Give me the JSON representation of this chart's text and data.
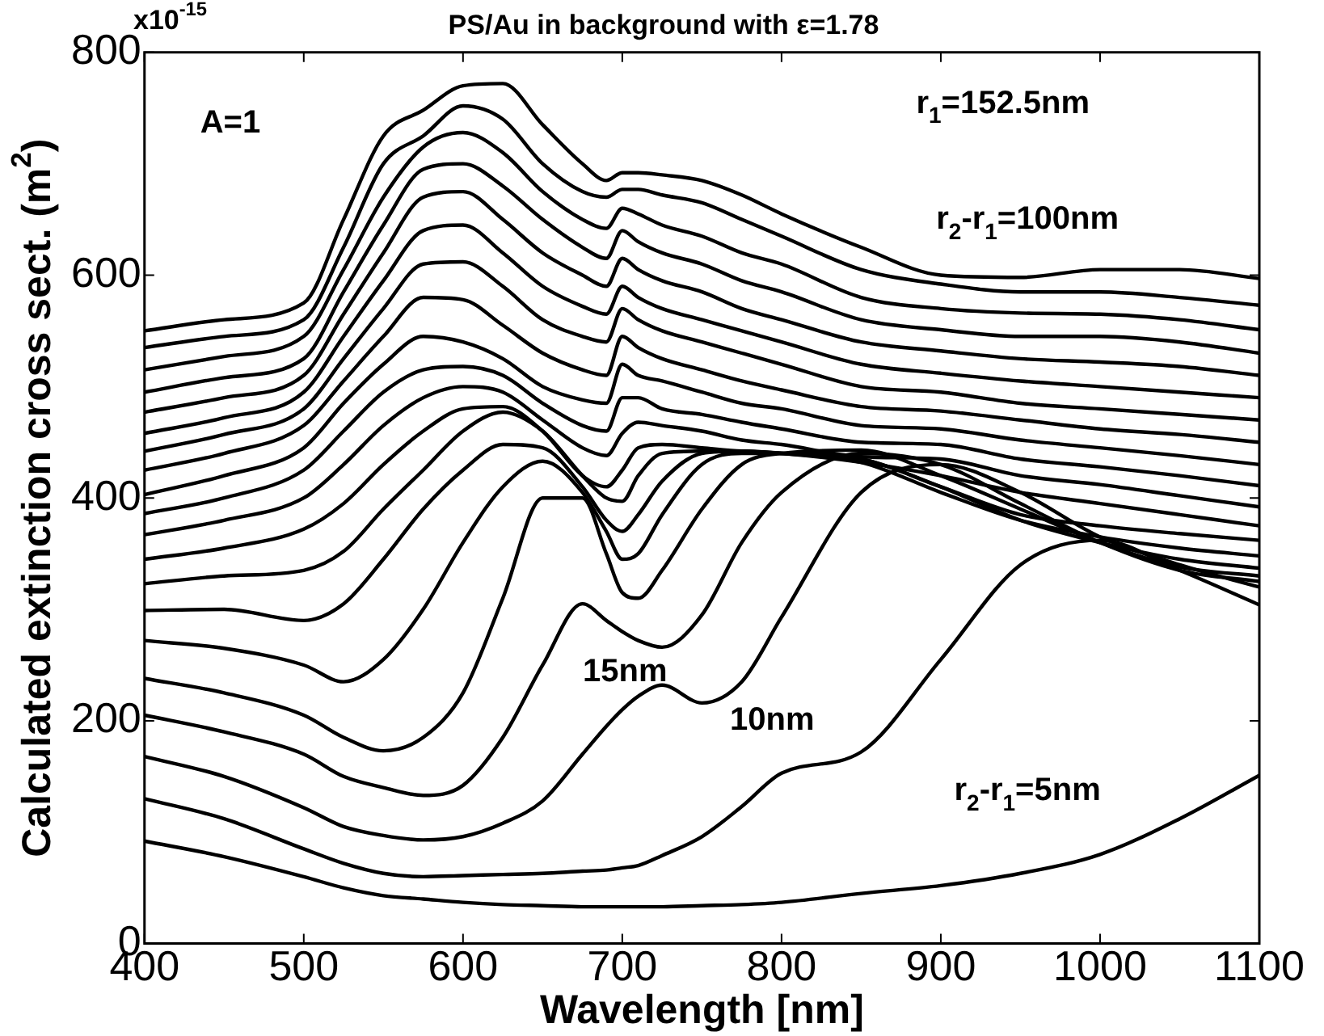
{
  "chart_data": {
    "type": "line",
    "title": "PS/Au in background with ε=1.78",
    "xlabel": "Wavelength [nm]",
    "ylabel": "Calculated extinction cross sect. (m$^{2}$)",
    "x": [
      400,
      450,
      500,
      525,
      550,
      575,
      600,
      625,
      650,
      675,
      690,
      700,
      710,
      725,
      750,
      775,
      800,
      850,
      900,
      950,
      1000,
      1050,
      1100
    ],
    "series": [
      {
        "color": "#000000",
        "values": [
          550,
          560,
          575,
          650,
          725,
          748,
          770,
          772,
          735,
          700,
          685,
          692,
          692,
          690,
          685,
          672,
          655,
          625,
          600,
          598,
          605,
          605,
          597
        ]
      },
      {
        "color": "#000000",
        "values": [
          535,
          545,
          560,
          625,
          700,
          725,
          752,
          740,
          700,
          675,
          670,
          677,
          677,
          672,
          665,
          650,
          635,
          605,
          592,
          585,
          585,
          580,
          573
        ]
      },
      {
        "color": "#000000",
        "values": [
          515,
          527,
          545,
          605,
          670,
          715,
          728,
          710,
          675,
          650,
          642,
          660,
          655,
          645,
          635,
          620,
          610,
          580,
          570,
          566,
          565,
          560,
          551
        ]
      },
      {
        "color": "#000000",
        "values": [
          495,
          508,
          525,
          585,
          645,
          695,
          700,
          680,
          650,
          625,
          615,
          640,
          630,
          620,
          610,
          595,
          585,
          560,
          551,
          545,
          545,
          540,
          530
        ]
      },
      {
        "color": "#000000",
        "values": [
          477,
          490,
          510,
          565,
          620,
          670,
          675,
          650,
          620,
          600,
          590,
          615,
          605,
          595,
          585,
          570,
          560,
          540,
          532,
          525,
          522,
          518,
          510
        ]
      },
      {
        "color": "#000000",
        "values": [
          458,
          472,
          495,
          545,
          595,
          640,
          645,
          620,
          590,
          572,
          565,
          590,
          580,
          570,
          560,
          550,
          540,
          520,
          512,
          505,
          500,
          495,
          490
        ]
      },
      {
        "color": "#000000",
        "values": [
          442,
          457,
          480,
          525,
          570,
          610,
          612,
          590,
          560,
          545,
          540,
          570,
          560,
          550,
          540,
          530,
          520,
          500,
          495,
          485,
          480,
          475,
          470
        ]
      },
      {
        "color": "#000000",
        "values": [
          425,
          440,
          465,
          505,
          545,
          580,
          578,
          555,
          530,
          515,
          510,
          545,
          535,
          525,
          515,
          505,
          497,
          482,
          478,
          470,
          462,
          457,
          450
        ]
      },
      {
        "color": "#000000",
        "values": [
          403,
          420,
          445,
          485,
          520,
          545,
          540,
          525,
          500,
          488,
          485,
          520,
          510,
          505,
          495,
          485,
          480,
          465,
          462,
          452,
          445,
          438,
          430
        ]
      },
      {
        "color": "#000000",
        "values": [
          386,
          400,
          425,
          460,
          495,
          515,
          518,
          510,
          485,
          465,
          460,
          490,
          490,
          480,
          475,
          468,
          462,
          450,
          448,
          435,
          428,
          420,
          411
        ]
      },
      {
        "color": "#000000",
        "values": [
          367,
          380,
          400,
          430,
          465,
          490,
          500,
          495,
          470,
          445,
          438,
          458,
          468,
          465,
          460,
          452,
          448,
          437,
          435,
          420,
          412,
          402,
          392
        ]
      },
      {
        "color": "#000000",
        "values": [
          345,
          355,
          372,
          395,
          430,
          460,
          480,
          482,
          460,
          420,
          410,
          425,
          445,
          448,
          445,
          442,
          440,
          432,
          420,
          405,
          395,
          385,
          375
        ]
      },
      {
        "color": "#000000",
        "values": [
          323,
          330,
          335,
          352,
          390,
          425,
          460,
          477,
          460,
          420,
          400,
          397,
          420,
          440,
          442,
          442,
          440,
          435,
          410,
          385,
          375,
          368,
          362
        ]
      },
      {
        "color": "#000000",
        "values": [
          299,
          300,
          290,
          305,
          345,
          390,
          425,
          448,
          445,
          410,
          380,
          370,
          385,
          415,
          440,
          442,
          440,
          432,
          405,
          380,
          365,
          355,
          348
        ]
      },
      {
        "color": "#000000",
        "values": [
          272,
          265,
          250,
          235,
          255,
          300,
          360,
          410,
          433,
          405,
          370,
          345,
          350,
          385,
          430,
          440,
          440,
          435,
          410,
          380,
          360,
          345,
          337
        ]
      },
      {
        "color": "#000000",
        "values": [
          238,
          225,
          205,
          185,
          173,
          185,
          225,
          310,
          400,
          400,
          350,
          315,
          310,
          335,
          390,
          430,
          440,
          443,
          420,
          390,
          360,
          338,
          330
        ]
      },
      {
        "color": "#000000",
        "values": [
          205,
          190,
          170,
          150,
          140,
          133,
          142,
          185,
          250,
          305,
          290,
          280,
          272,
          266,
          295,
          360,
          405,
          440,
          430,
          395,
          360,
          335,
          325
        ]
      },
      {
        "color": "#000000",
        "values": [
          168,
          150,
          122,
          105,
          97,
          93,
          96,
          108,
          128,
          170,
          195,
          210,
          222,
          232,
          216,
          235,
          293,
          405,
          430,
          405,
          365,
          340,
          320
        ]
      },
      {
        "color": "#000000",
        "values": [
          130,
          112,
          85,
          72,
          63,
          60,
          61,
          62,
          63,
          65,
          66,
          68,
          70,
          79,
          96,
          123,
          153,
          172,
          255,
          340,
          362,
          335,
          304
        ]
      },
      {
        "color": "#000000",
        "values": [
          92,
          78,
          60,
          50,
          43,
          40,
          37,
          35,
          34,
          33,
          33,
          33,
          33,
          33,
          34,
          35,
          37,
          45,
          52,
          63,
          80,
          112,
          151
        ]
      }
    ],
    "xlim": [
      400,
      1100
    ],
    "xticks": [
      400,
      500,
      600,
      700,
      800,
      900,
      1000,
      1100
    ],
    "ylim": [
      0,
      800
    ],
    "yticks": [
      0,
      200,
      400,
      600,
      800
    ],
    "grid": false,
    "legend": false,
    "marker": "none",
    "line_style": "solid",
    "annotations": [
      "x10$^{-15}$",
      "A=1",
      "r$_{1}$=152.5nm",
      "r$_{2}$-r$_{1}$=100nm",
      "15nm",
      "10nm",
      "r$_{2}$-r$_{1}$=5nm"
    ]
  }
}
